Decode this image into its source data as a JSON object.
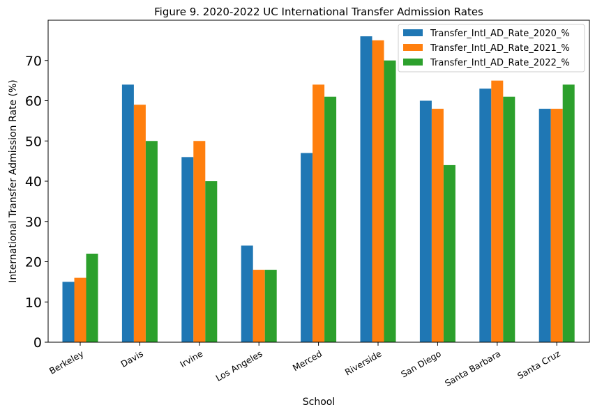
{
  "chart_data": {
    "type": "bar",
    "title": "Figure 9. 2020-2022 UC International Transfer Admission Rates",
    "xlabel": "School",
    "ylabel": "International Transfer Admission Rate (%)",
    "categories": [
      "Berkeley",
      "Davis",
      "Irvine",
      "Los Angeles",
      "Merced",
      "Riverside",
      "San Diego",
      "Santa Barbara",
      "Santa Cruz"
    ],
    "series": [
      {
        "name": "Transfer_Intl_AD_Rate_2020_%",
        "color": "#1f77b4",
        "values": [
          15,
          64,
          46,
          24,
          47,
          76,
          60,
          63,
          58
        ]
      },
      {
        "name": "Transfer_Intl_AD_Rate_2021_%",
        "color": "#ff7f0e",
        "values": [
          16,
          59,
          50,
          18,
          64,
          75,
          58,
          65,
          58
        ]
      },
      {
        "name": "Transfer_Intl_AD_Rate_2022_%",
        "color": "#2ca02c",
        "values": [
          22,
          50,
          40,
          18,
          61,
          70,
          44,
          61,
          64
        ]
      }
    ],
    "ylim": [
      0,
      80
    ],
    "yticks": [
      0,
      10,
      20,
      30,
      40,
      50,
      60,
      70
    ],
    "grid": false,
    "legend": "top-right"
  }
}
